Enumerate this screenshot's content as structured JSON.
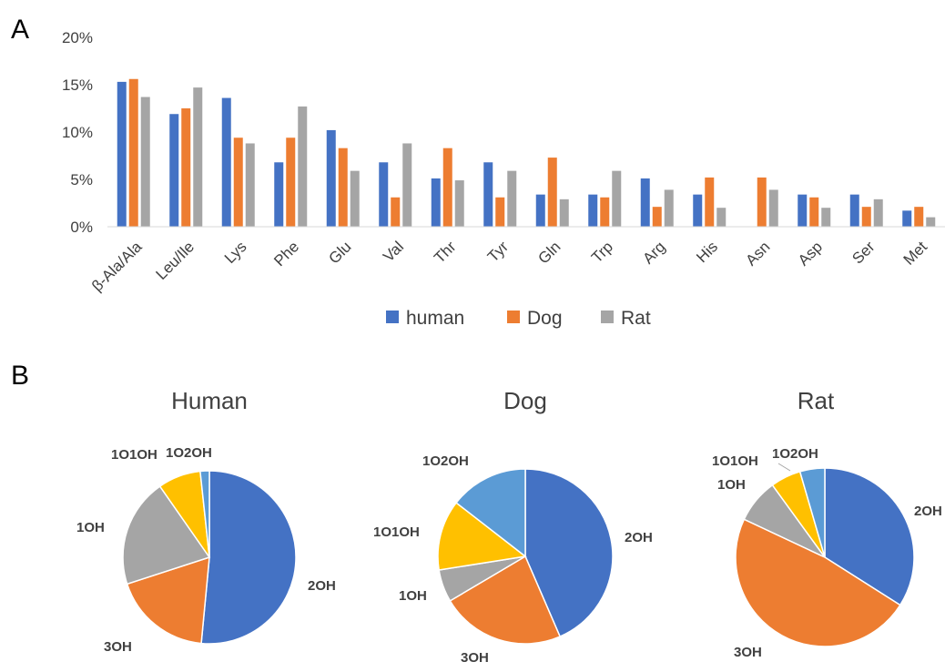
{
  "panel_a_letter": "A",
  "panel_b_letter": "B",
  "chart_data": [
    {
      "type": "bar",
      "categories": [
        "β-Ala/Ala",
        "Leu/Ile",
        "Lys",
        "Phe",
        "Glu",
        "Val",
        "Thr",
        "Tyr",
        "Gln",
        "Trp",
        "Arg",
        "His",
        "Asn",
        "Asp",
        "Ser",
        "Met"
      ],
      "series": [
        {
          "name": "human",
          "color": "#4472c4",
          "values": [
            15.3,
            11.9,
            13.6,
            6.8,
            10.2,
            6.8,
            5.1,
            6.8,
            3.4,
            3.4,
            5.1,
            3.4,
            0,
            3.4,
            3.4,
            1.7
          ]
        },
        {
          "name": "Dog",
          "color": "#ed7d31",
          "values": [
            15.6,
            12.5,
            9.4,
            9.4,
            8.3,
            3.1,
            8.3,
            3.1,
            7.3,
            3.1,
            2.1,
            5.2,
            5.2,
            3.1,
            2.1,
            2.1
          ]
        },
        {
          "name": "Rat",
          "color": "#a5a5a5",
          "values": [
            13.7,
            14.7,
            8.8,
            12.7,
            5.9,
            8.8,
            4.9,
            5.9,
            2.9,
            5.9,
            3.9,
            2.0,
            3.9,
            2.0,
            2.9,
            1.0
          ]
        }
      ],
      "ylim": [
        0,
        20
      ],
      "yticks": [
        "0%",
        "5%",
        "10%",
        "15%",
        "20%"
      ],
      "legend": "bottom",
      "grid": false
    },
    {
      "type": "pie",
      "title": "Human",
      "labels": [
        "2OH",
        "3OH",
        "1OH",
        "1O1OH",
        "1O2OH"
      ],
      "values": [
        51.5,
        18.5,
        20.3,
        8.0,
        1.7
      ],
      "colors": [
        "#4472c4",
        "#ed7d31",
        "#a5a5a5",
        "#ffc000",
        "#5b9bd5"
      ]
    },
    {
      "type": "pie",
      "title": "Dog",
      "labels": [
        "2OH",
        "3OH",
        "1OH",
        "1O1OH",
        "1O2OH"
      ],
      "values": [
        43.5,
        23.0,
        6.0,
        13.0,
        14.5
      ],
      "colors": [
        "#4472c4",
        "#ed7d31",
        "#a5a5a5",
        "#ffc000",
        "#5b9bd5"
      ]
    },
    {
      "type": "pie",
      "title": "Rat",
      "labels": [
        "2OH",
        "3OH",
        "1OH",
        "1O1OH",
        "1O2OH"
      ],
      "values": [
        34.0,
        48.0,
        8.0,
        5.5,
        4.5
      ],
      "colors": [
        "#4472c4",
        "#ed7d31",
        "#a5a5a5",
        "#ffc000",
        "#5b9bd5"
      ]
    }
  ]
}
